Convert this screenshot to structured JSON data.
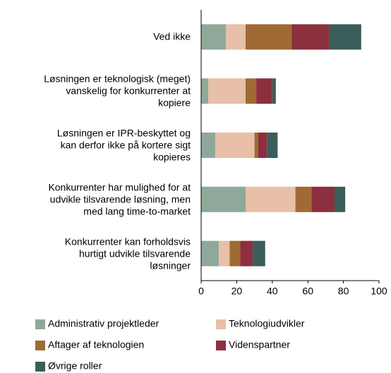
{
  "chart_data": {
    "type": "stacked_barh",
    "categories": [
      "Ved ikke",
      "Løsningen er teknologisk (meget)\nvanskelig for konkurrenter at\nkopiere",
      "Løsningen er  IPR-beskyttet og\nkan derfor ikke på kortere sigt\nkopieres",
      "Konkurrenter har mulighed for at\nudvikle tilsvarende løsning, men\nmed lang time-to-market",
      "Konkurrenter kan forholdsvis\nhurtigt udvikle tilsvarende\nløsninger"
    ],
    "series": [
      {
        "name": "Administrativ projektleder",
        "color": "#8fa89a",
        "values": [
          14,
          4,
          8,
          25,
          10
        ]
      },
      {
        "name": "Teknologiudvikler",
        "color": "#e8bfa8",
        "values": [
          11,
          21,
          22,
          28,
          6
        ]
      },
      {
        "name": "Aftager af teknologien",
        "color": "#a06a35",
        "values": [
          26,
          6,
          2,
          9,
          6
        ]
      },
      {
        "name": "Videnspartner",
        "color": "#8c2f3e",
        "values": [
          21,
          9,
          5,
          13,
          7
        ]
      },
      {
        "name": "Øvrige roller",
        "color": "#3a5e5a",
        "values": [
          18,
          2,
          6,
          6,
          7
        ]
      }
    ],
    "xlim": [
      0,
      100
    ],
    "xticks": [
      0,
      20,
      40,
      60,
      80,
      100
    ]
  }
}
